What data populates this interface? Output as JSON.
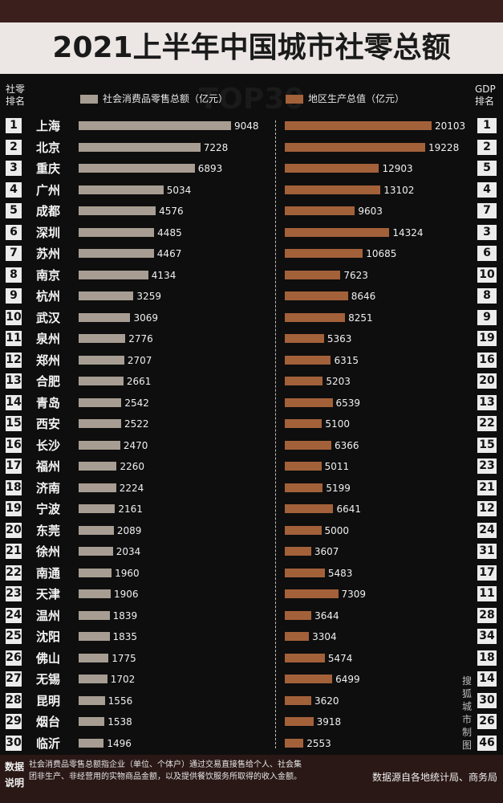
{
  "title": "2021上半年中国城市社零总额TOP30",
  "header": {
    "left_rank_line1": "社零",
    "left_rank_line2": "排名",
    "right_rank_line1": "GDP",
    "right_rank_line2": "排名"
  },
  "watermark": "搜狐城市制图",
  "footer": {
    "label_line1": "数据",
    "label_line2": "说明",
    "note": "社会消费品零售总额指企业（单位、个体户）通过交易直接售给个人、社会集团非生产、非经营用的实物商品金额，以及提供餐饮服务所取得的收入金额。",
    "source": "数据源自各地统计局、商务局"
  },
  "colors": {
    "retail_bar": "#a79d92",
    "gdp_bar": "#a3613a",
    "title_bg": "#ece7e4",
    "frame": "#3a1f1c"
  },
  "chart_data": {
    "type": "bar",
    "orientation": "horizontal",
    "title": "2021上半年中国城市社零总额TOP30",
    "series": [
      {
        "name": "社会消费品零售总额（亿元）",
        "values": [
          9048,
          7228,
          6893,
          5034,
          4576,
          4485,
          4467,
          4134,
          3259,
          3069,
          2776,
          2707,
          2661,
          2542,
          2522,
          2470,
          2260,
          2224,
          2161,
          2089,
          2034,
          1960,
          1906,
          1839,
          1835,
          1775,
          1702,
          1556,
          1538,
          1496
        ]
      },
      {
        "name": "地区生产总值（亿元）",
        "values": [
          20103,
          19228,
          12903,
          13102,
          9603,
          14324,
          10685,
          7623,
          8646,
          8251,
          5363,
          6315,
          5203,
          6539,
          5100,
          6366,
          5011,
          5199,
          6641,
          5000,
          3607,
          5483,
          7309,
          3644,
          3304,
          5474,
          6499,
          3620,
          3918,
          2553
        ]
      }
    ],
    "categories": [
      "上海",
      "北京",
      "重庆",
      "广州",
      "成都",
      "深圳",
      "苏州",
      "南京",
      "杭州",
      "武汉",
      "泉州",
      "郑州",
      "合肥",
      "青岛",
      "西安",
      "长沙",
      "福州",
      "济南",
      "宁波",
      "东莞",
      "徐州",
      "南通",
      "天津",
      "温州",
      "沈阳",
      "佛山",
      "无锡",
      "昆明",
      "烟台",
      "临沂"
    ],
    "retail_rank": [
      1,
      2,
      3,
      4,
      5,
      6,
      7,
      8,
      9,
      10,
      11,
      12,
      13,
      14,
      15,
      16,
      17,
      18,
      19,
      20,
      21,
      22,
      23,
      24,
      25,
      26,
      27,
      28,
      29,
      30
    ],
    "gdp_rank": [
      1,
      2,
      5,
      4,
      7,
      3,
      6,
      10,
      8,
      9,
      19,
      16,
      20,
      13,
      22,
      15,
      23,
      21,
      12,
      24,
      31,
      17,
      11,
      28,
      34,
      18,
      14,
      30,
      26,
      46
    ],
    "grid": false,
    "legend_position": "top"
  }
}
